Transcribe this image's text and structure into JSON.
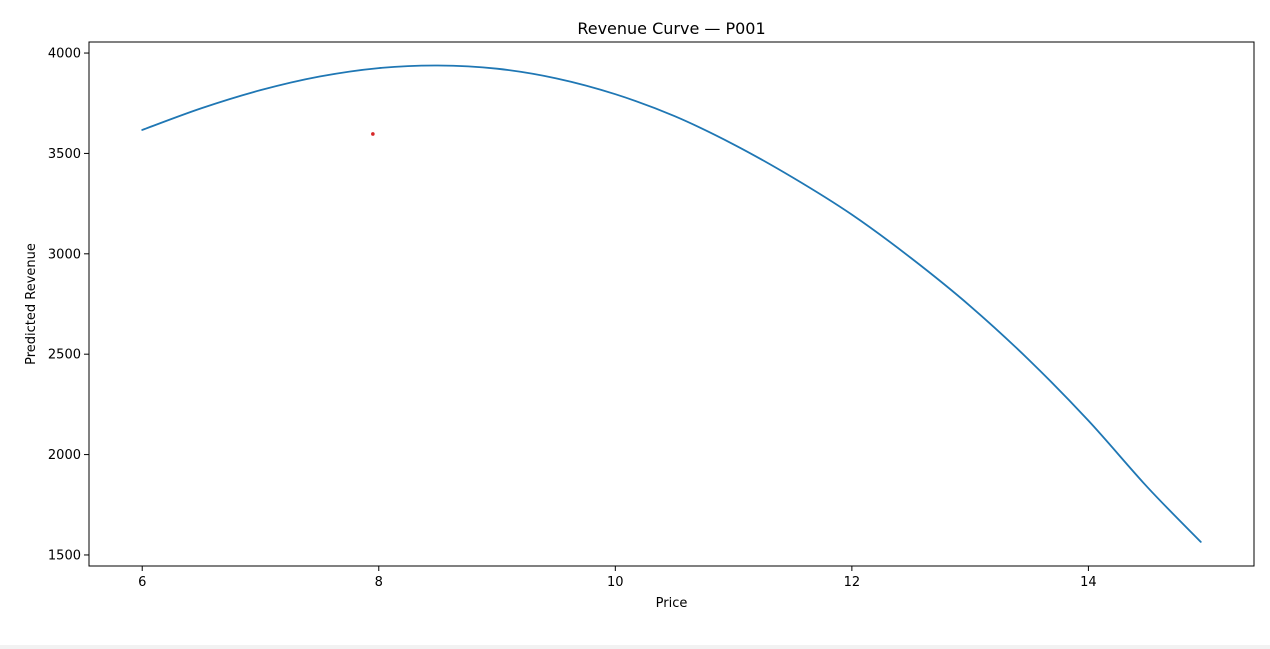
{
  "chart_data": {
    "type": "line",
    "title": "Revenue Curve — P001",
    "xlabel": "Price",
    "ylabel": "Predicted Revenue",
    "xlim": [
      5.55,
      15.4
    ],
    "ylim": [
      1445,
      4055
    ],
    "x_ticks": [
      6,
      8,
      10,
      12,
      14
    ],
    "y_ticks": [
      1500,
      2000,
      2500,
      3000,
      3500,
      4000
    ],
    "grid": false,
    "legend": "none",
    "series": [
      {
        "color": "#1f77b4",
        "x": [
          6.0,
          6.5,
          7.0,
          7.5,
          8.0,
          8.5,
          9.0,
          9.5,
          10.0,
          10.5,
          11.0,
          11.5,
          12.0,
          12.5,
          13.0,
          13.5,
          14.0,
          14.5,
          14.95
        ],
        "y": [
          3617,
          3725,
          3815,
          3883,
          3925,
          3938,
          3922,
          3874,
          3795,
          3686,
          3545,
          3380,
          3195,
          2979,
          2740,
          2470,
          2169,
          1837,
          1565
        ]
      }
    ],
    "points": [
      {
        "x": 7.95,
        "y": 3597,
        "color": "#d62728"
      }
    ]
  }
}
